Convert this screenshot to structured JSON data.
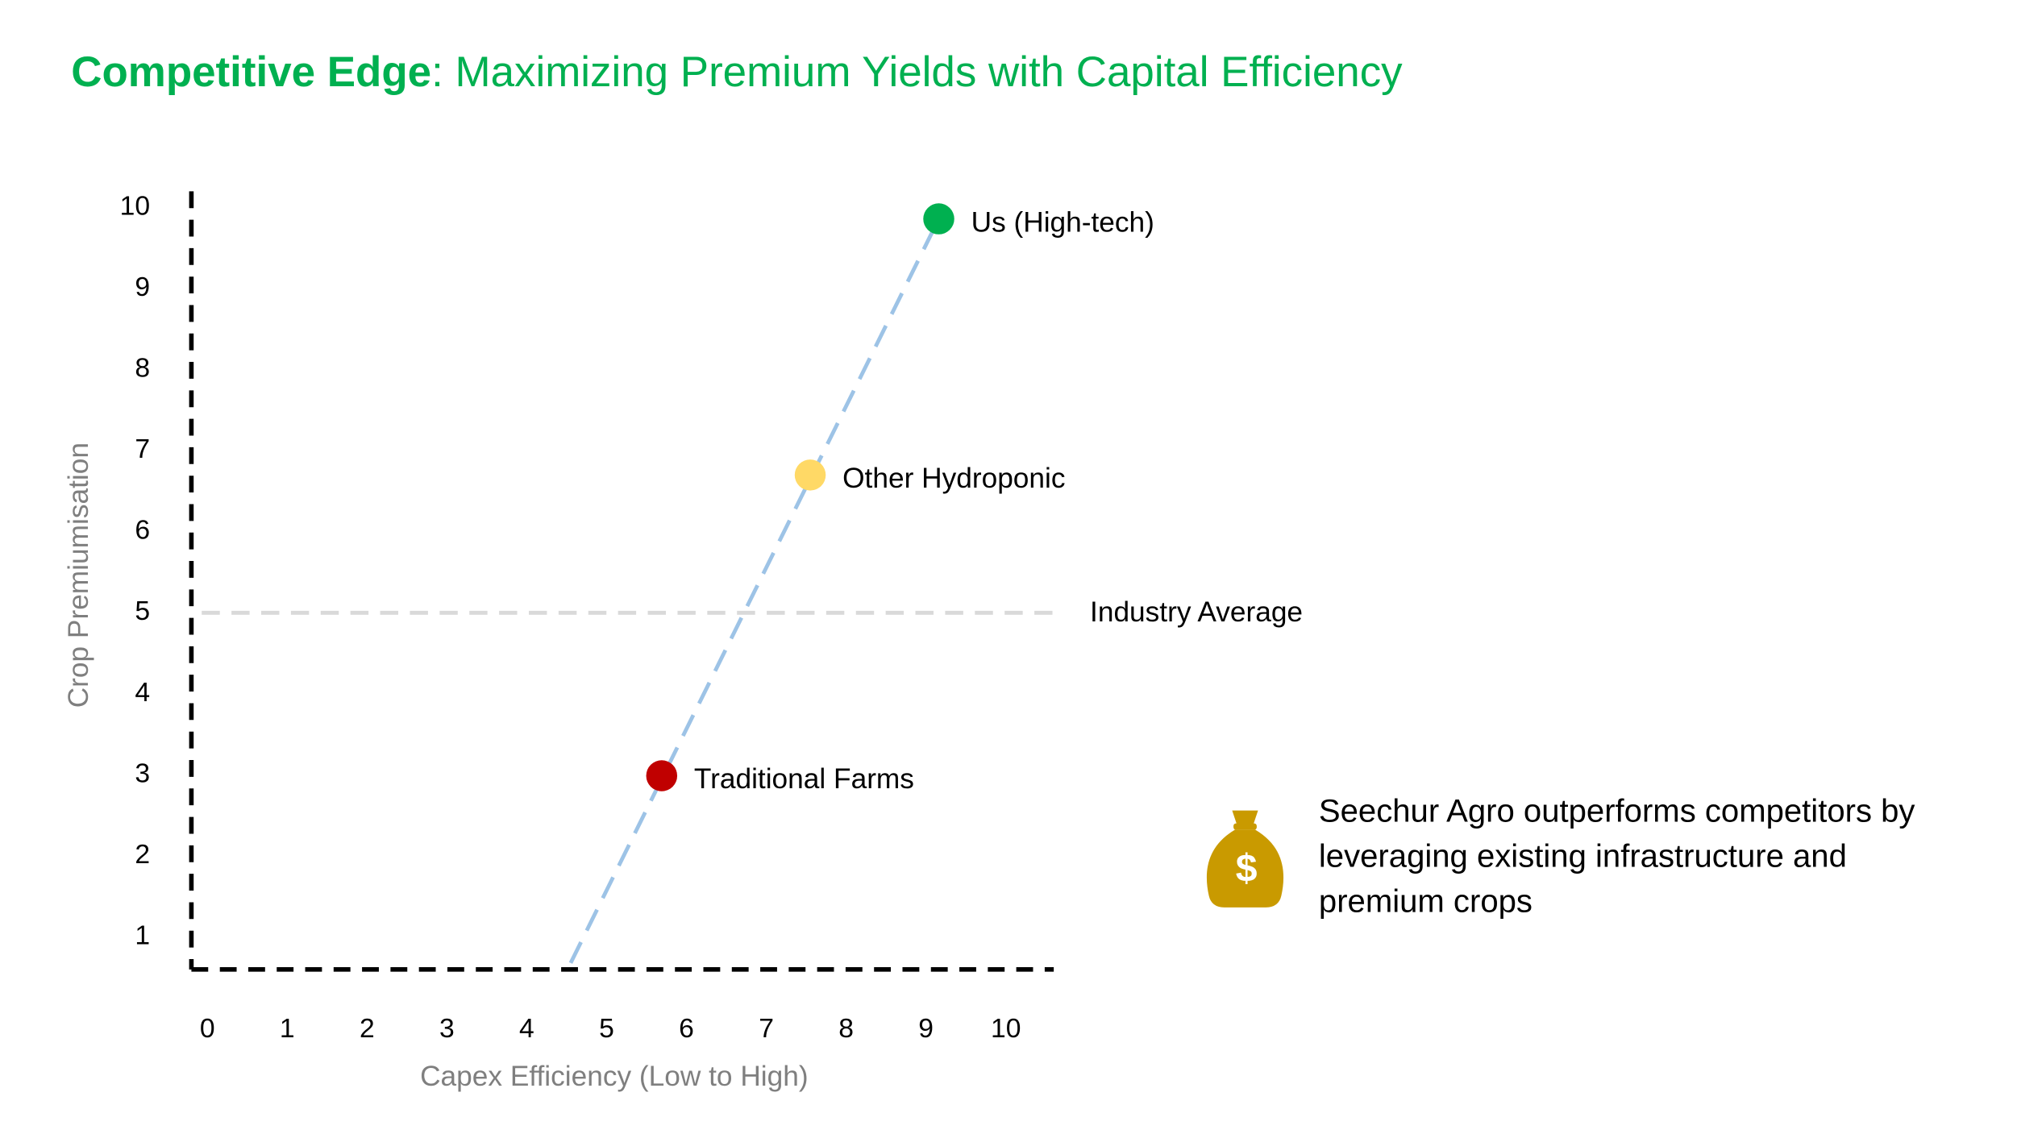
{
  "chart_data": {
    "type": "scatter",
    "title": [
      "Competitive Edge",
      ": Maximizing Premium Yields with Capital Efficiency"
    ],
    "x_label": "Capex Efficiency (Low to High)",
    "y_label": "Crop Premiumisation",
    "xlim": [
      -0.2,
      10.6
    ],
    "ylim": [
      0.6,
      10.2
    ],
    "xticks": [
      0,
      1,
      2,
      3,
      4,
      5,
      6,
      7,
      8,
      9,
      10
    ],
    "yticks": [
      1,
      2,
      3,
      4,
      5,
      6,
      7,
      8,
      9,
      10
    ],
    "series": [
      {
        "name": "Traditional Farms",
        "color": "#c00000",
        "x": [
          5.69
        ],
        "y": [
          2.99
        ]
      },
      {
        "name": "Other Hydroponic",
        "color": "#ffd966",
        "x": [
          7.55
        ],
        "y": [
          6.7
        ]
      },
      {
        "name": "Us (High-tech)",
        "color": "#00b050",
        "x": [
          9.16
        ],
        "y": [
          9.86
        ]
      }
    ],
    "trend": {
      "color": "#9dc3e6",
      "x": [
        4.55,
        9.16
      ],
      "y": [
        0.68,
        9.86
      ]
    },
    "reference_line": {
      "y": 5,
      "label": "Industry Average",
      "color": "#d9d9d9"
    },
    "note": [
      "Seechur Agro outperforms competitors by",
      "leveraging existing infrastructure and",
      "premium crops"
    ]
  }
}
